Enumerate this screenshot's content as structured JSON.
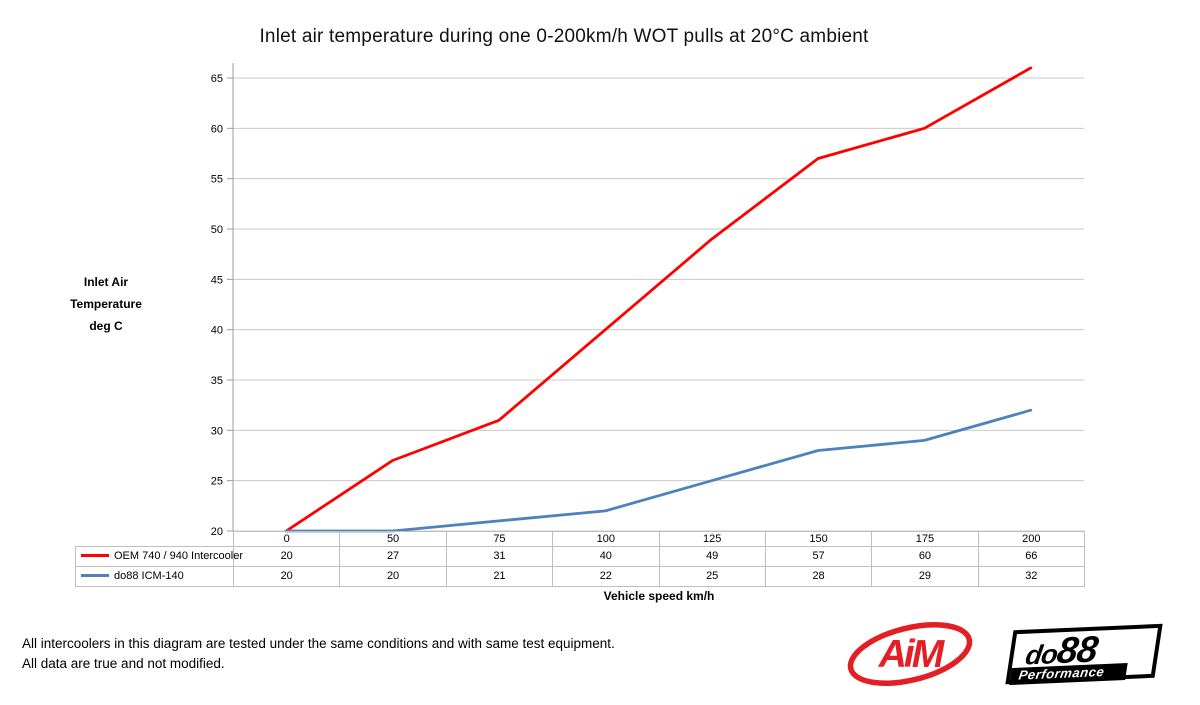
{
  "chart_data": {
    "type": "line",
    "title": "Inlet air temperature during one 0-200km/h WOT pulls at 20°C ambient",
    "categories": [
      "0",
      "50",
      "75",
      "100",
      "125",
      "150",
      "175",
      "200"
    ],
    "series": [
      {
        "name": "OEM 740 / 940 Intercooler",
        "color": "#ff0000",
        "values": [
          20,
          27,
          31,
          40,
          49,
          57,
          60,
          66
        ]
      },
      {
        "name": "do88 ICM-140",
        "color": "#4f81bd",
        "values": [
          20,
          20,
          21,
          22,
          25,
          28,
          29,
          32
        ]
      }
    ],
    "xlabel": "Vehicle speed km/h",
    "ylabel": "Inlet Air Temperature deg C",
    "ylabel_lines": [
      "Inlet Air",
      "Temperature",
      "deg C"
    ],
    "y_ticks": [
      20,
      25,
      30,
      35,
      40,
      45,
      50,
      55,
      60,
      65
    ],
    "ylim": [
      20,
      65
    ],
    "grid": "horizontal",
    "legend_position": "table-left"
  },
  "footnote": {
    "line1": "All intercoolers in this diagram are tested under the same conditions and with same test equipment.",
    "line2": "All data are true and not modified."
  },
  "logos": {
    "aim_text": "AiM",
    "do88_text_a": "do",
    "do88_text_b": "88",
    "do88_subtext": "Performance"
  },
  "colors": {
    "series_oem": "#ff0000",
    "series_do88": "#4f81bd",
    "gridline": "#c9c9c9",
    "axis": "#9d9d9d",
    "table_border": "#bfbfbf",
    "logo_red": "#e31e24"
  }
}
